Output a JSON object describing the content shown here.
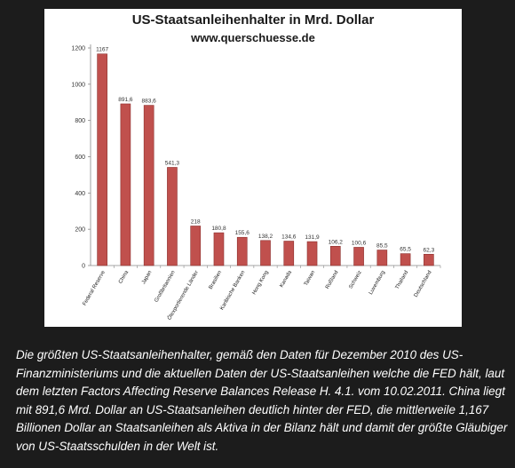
{
  "caption": "Die größten US-Staatsanleihenhalter, gemäß den Daten für Dezember 2010 des US-Finanzministeriums und die aktuellen Daten der US-Staatsanleihen welche die FED hält, laut dem letzten Factors Affecting Reserve Balances Release H. 4.1.  vom 10.02.2011. China liegt mit 891,6 Mrd. Dollar an US-Staatsanleihen deutlich hinter der FED, die mittlerweile 1,167 Billionen Dollar an Staatsanleihen als Aktiva in der Bilanz hält und damit der größte Gläubiger von US-Staatsschulden in der Welt ist.",
  "chart_data": {
    "type": "bar",
    "title": "US-Staatsanleihenhalter  in Mrd. Dollar",
    "subtitle": "www.querschuesse.de",
    "categories": [
      "Federal Reserve",
      "China",
      "Japan",
      "Großbritannien",
      "Ölexportierende Länder",
      "Brasilien",
      "Karibische Banken",
      "Hong Kong",
      "Kanada",
      "Taiwan",
      "Rußland",
      "Schweiz",
      "Luxemburg",
      "Thailand",
      "Deutschland"
    ],
    "values": [
      1167,
      891.6,
      883.6,
      541.3,
      218,
      180.8,
      155.6,
      138.2,
      134.6,
      131.9,
      106.2,
      100.6,
      85.5,
      65.5,
      62.3
    ],
    "value_labels": [
      "1167",
      "891,6",
      "883,6",
      "541,3",
      "218",
      "180,8",
      "155,6",
      "138,2",
      "134,6",
      "131,9",
      "106,2",
      "100,6",
      "85,5",
      "65,5",
      "62,3"
    ],
    "yticks": [
      0,
      200,
      400,
      600,
      800,
      1000,
      1200
    ],
    "ylim": [
      0,
      1200
    ],
    "grid": false,
    "bar_color": "#c0504d"
  }
}
